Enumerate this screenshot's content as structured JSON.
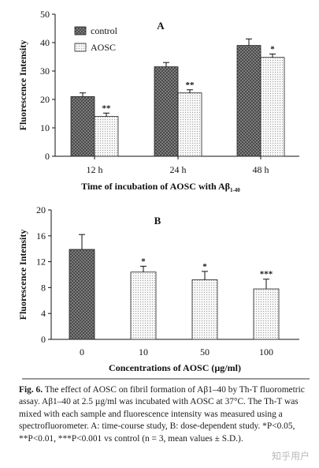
{
  "chart_data": [
    {
      "type": "bar",
      "panel": "A",
      "ylabel": "Fluorescence Intensity",
      "xlabel_main": "Time of incubation of AOSC with Aβ",
      "xlabel_sub": "1-40",
      "ylim": [
        0,
        50
      ],
      "yticks": [
        "0",
        "10",
        "20",
        "30",
        "40",
        "50"
      ],
      "categories": [
        "12 h",
        "24 h",
        "48 h"
      ],
      "legend": {
        "position": "top-left",
        "entries": [
          "control",
          "AOSC"
        ]
      },
      "series": [
        {
          "name": "control",
          "values": [
            21,
            31.5,
            39
          ],
          "errors": [
            1.3,
            1.5,
            2.3
          ],
          "marks": [
            "",
            "",
            ""
          ],
          "pattern": "crosshatch"
        },
        {
          "name": "AOSC",
          "values": [
            14,
            22.3,
            34.8
          ],
          "errors": [
            1.2,
            1.1,
            1.2
          ],
          "marks": [
            "**",
            "**",
            "*"
          ],
          "pattern": "dots"
        }
      ]
    },
    {
      "type": "bar",
      "panel": "B",
      "ylabel": "Fluorescence Intensity",
      "xlabel": "Concentrations of AOSC (µg/ml)",
      "ylim": [
        0,
        20
      ],
      "yticks": [
        "0",
        "4",
        "8",
        "12",
        "16",
        "20"
      ],
      "categories": [
        "0",
        "10",
        "50",
        "100"
      ],
      "values": [
        13.9,
        10.4,
        9.2,
        7.8
      ],
      "errors": [
        2.3,
        0.9,
        1.3,
        1.5
      ],
      "marks": [
        "",
        "*",
        "*",
        "***"
      ],
      "patterns": [
        "crosshatch",
        "dots",
        "dots",
        "dots"
      ]
    }
  ],
  "caption": {
    "label": "Fig. 6.",
    "lines": [
      "The effect of AOSC on fibril formation of Aβ1–40 by Th-T",
      "fluorometric assay. Aβ1–40 at 2.5 µg/ml was incubated with AOSC at",
      "37°C. The Th-T was mixed with each sample and fluorescence",
      "intensity was measured using a spectrofluorometer. A: time-course",
      "study, B: dose-dependent study. *P<0.05, **P<0.01, ***P<0.001 vs",
      "control (n = 3, mean values ± S.D.)."
    ]
  },
  "watermark": "知乎用户"
}
